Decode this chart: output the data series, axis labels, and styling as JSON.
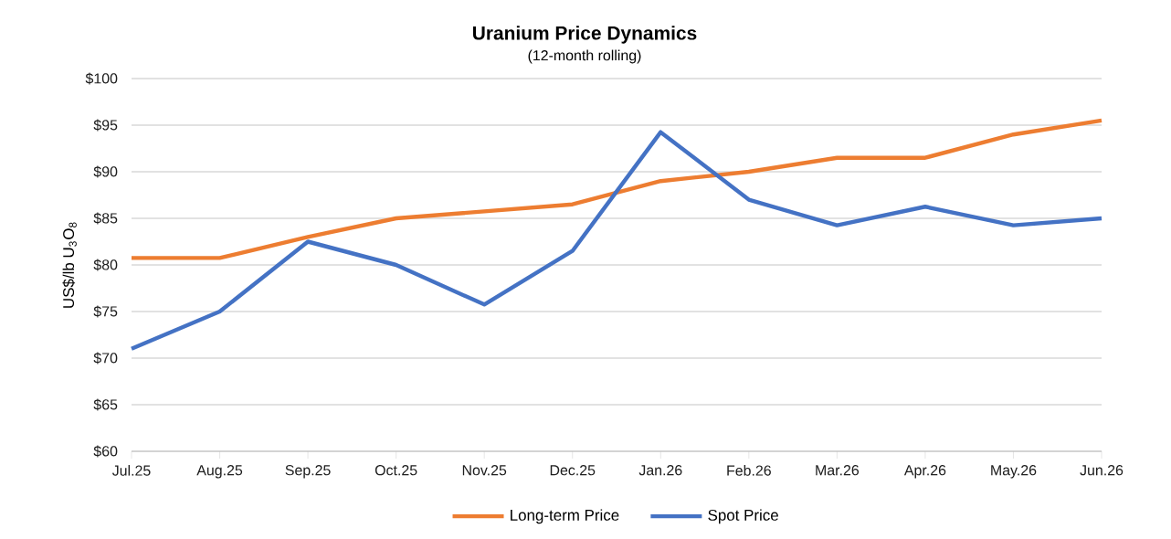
{
  "chart_data": {
    "type": "line",
    "title": "Uranium Price Dynamics",
    "subtitle": "(12-month rolling)",
    "ylabel": "US$/lb U$_{3}$O$_{8}$",
    "categories": [
      "Jul.25",
      "Aug.25",
      "Sep.25",
      "Oct.25",
      "Nov.25",
      "Dec.25",
      "Jan.26",
      "Feb.26",
      "Mar.26",
      "Apr.26",
      "May.26",
      "Jun.26"
    ],
    "series": [
      {
        "name": "Long-term Price",
        "color": "#ed7d31",
        "values": [
          80.75,
          80.75,
          83,
          85,
          85.75,
          86.5,
          89,
          90,
          91.5,
          91.5,
          94,
          95.5
        ]
      },
      {
        "name": "Spot Price",
        "color": "#4472c4",
        "values": [
          71,
          75,
          82.5,
          80,
          75.75,
          81.5,
          94.25,
          87,
          84.25,
          86.25,
          84.25,
          85
        ]
      }
    ],
    "ylim": [
      60,
      100
    ],
    "yticks": [
      {
        "value": 60,
        "label": "$60"
      },
      {
        "value": 65,
        "label": "$65"
      },
      {
        "value": 70,
        "label": "$70"
      },
      {
        "value": 75,
        "label": "$75"
      },
      {
        "value": 80,
        "label": "$80"
      },
      {
        "value": 85,
        "label": "$85"
      },
      {
        "value": 90,
        "label": "$90"
      },
      {
        "value": 95,
        "label": "$95"
      },
      {
        "value": 100,
        "label": "$100"
      }
    ],
    "grid": "y",
    "legend": "bottom",
    "marker": "none",
    "line_style": "solid"
  }
}
